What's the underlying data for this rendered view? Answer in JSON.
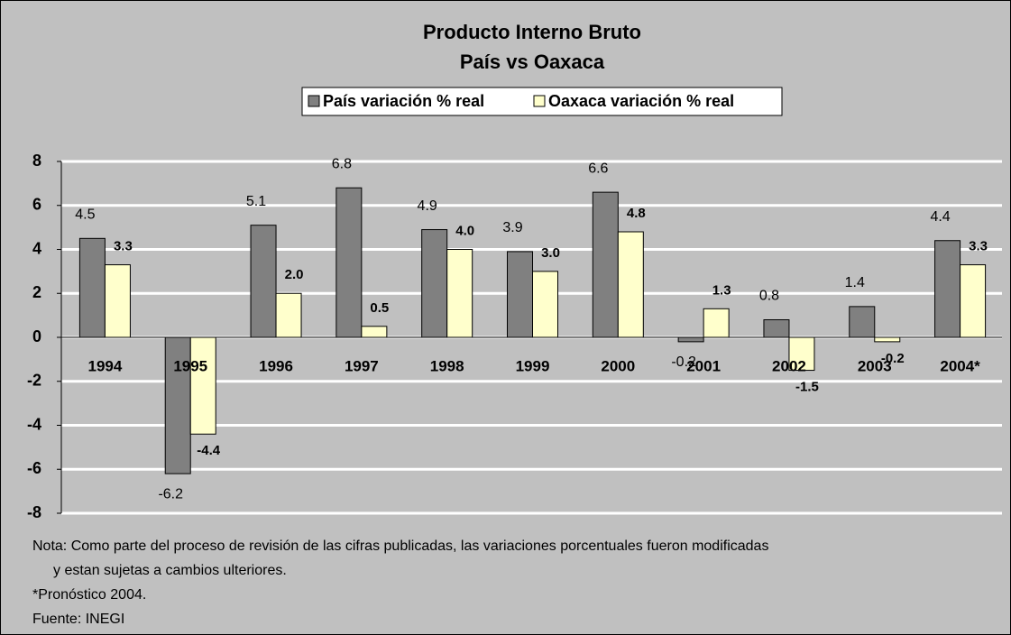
{
  "chart_data": {
    "type": "bar",
    "title": "Producto Interno Bruto",
    "subtitle": "País vs Oaxaca",
    "categories": [
      "1994",
      "1995",
      "1996",
      "1997",
      "1998",
      "1999",
      "2000",
      "2001",
      "2002",
      "2003",
      "2004*"
    ],
    "series": [
      {
        "name": "País variación % real",
        "color": "#808080",
        "values": [
          4.5,
          -6.2,
          5.1,
          6.8,
          4.9,
          3.9,
          6.6,
          -0.2,
          0.8,
          1.4,
          4.4
        ],
        "value_labels": [
          "4.5",
          "-6.2",
          "5.1",
          "6.8",
          "4.9",
          "3.9",
          "6.6",
          "-0.2",
          "0.8",
          "1.4",
          "4.4"
        ]
      },
      {
        "name": "Oaxaca variación % real",
        "color": "#ffffcc",
        "values": [
          3.3,
          -4.4,
          2.0,
          0.5,
          4.0,
          3.0,
          4.8,
          1.3,
          -1.5,
          -0.2,
          3.3
        ],
        "value_labels": [
          "3.3",
          "-4.4",
          "2.0",
          "0.5",
          "4.0",
          "3.0",
          "4.8",
          "1.3",
          "-1.5",
          "-0.2",
          "3.3"
        ]
      }
    ],
    "ylim": [
      -8,
      8
    ],
    "yticks": [
      -8,
      -6,
      -4,
      -2,
      0,
      2,
      4,
      6,
      8
    ],
    "grid": true,
    "legend": "top",
    "notes": [
      "Nota:  Como parte del proceso de revisión de las cifras publicadas, las variaciones porcentuales fueron modificadas",
      "y estan sujetas a cambios ulteriores.",
      "*Pronóstico 2004.",
      "Fuente: INEGI"
    ]
  }
}
